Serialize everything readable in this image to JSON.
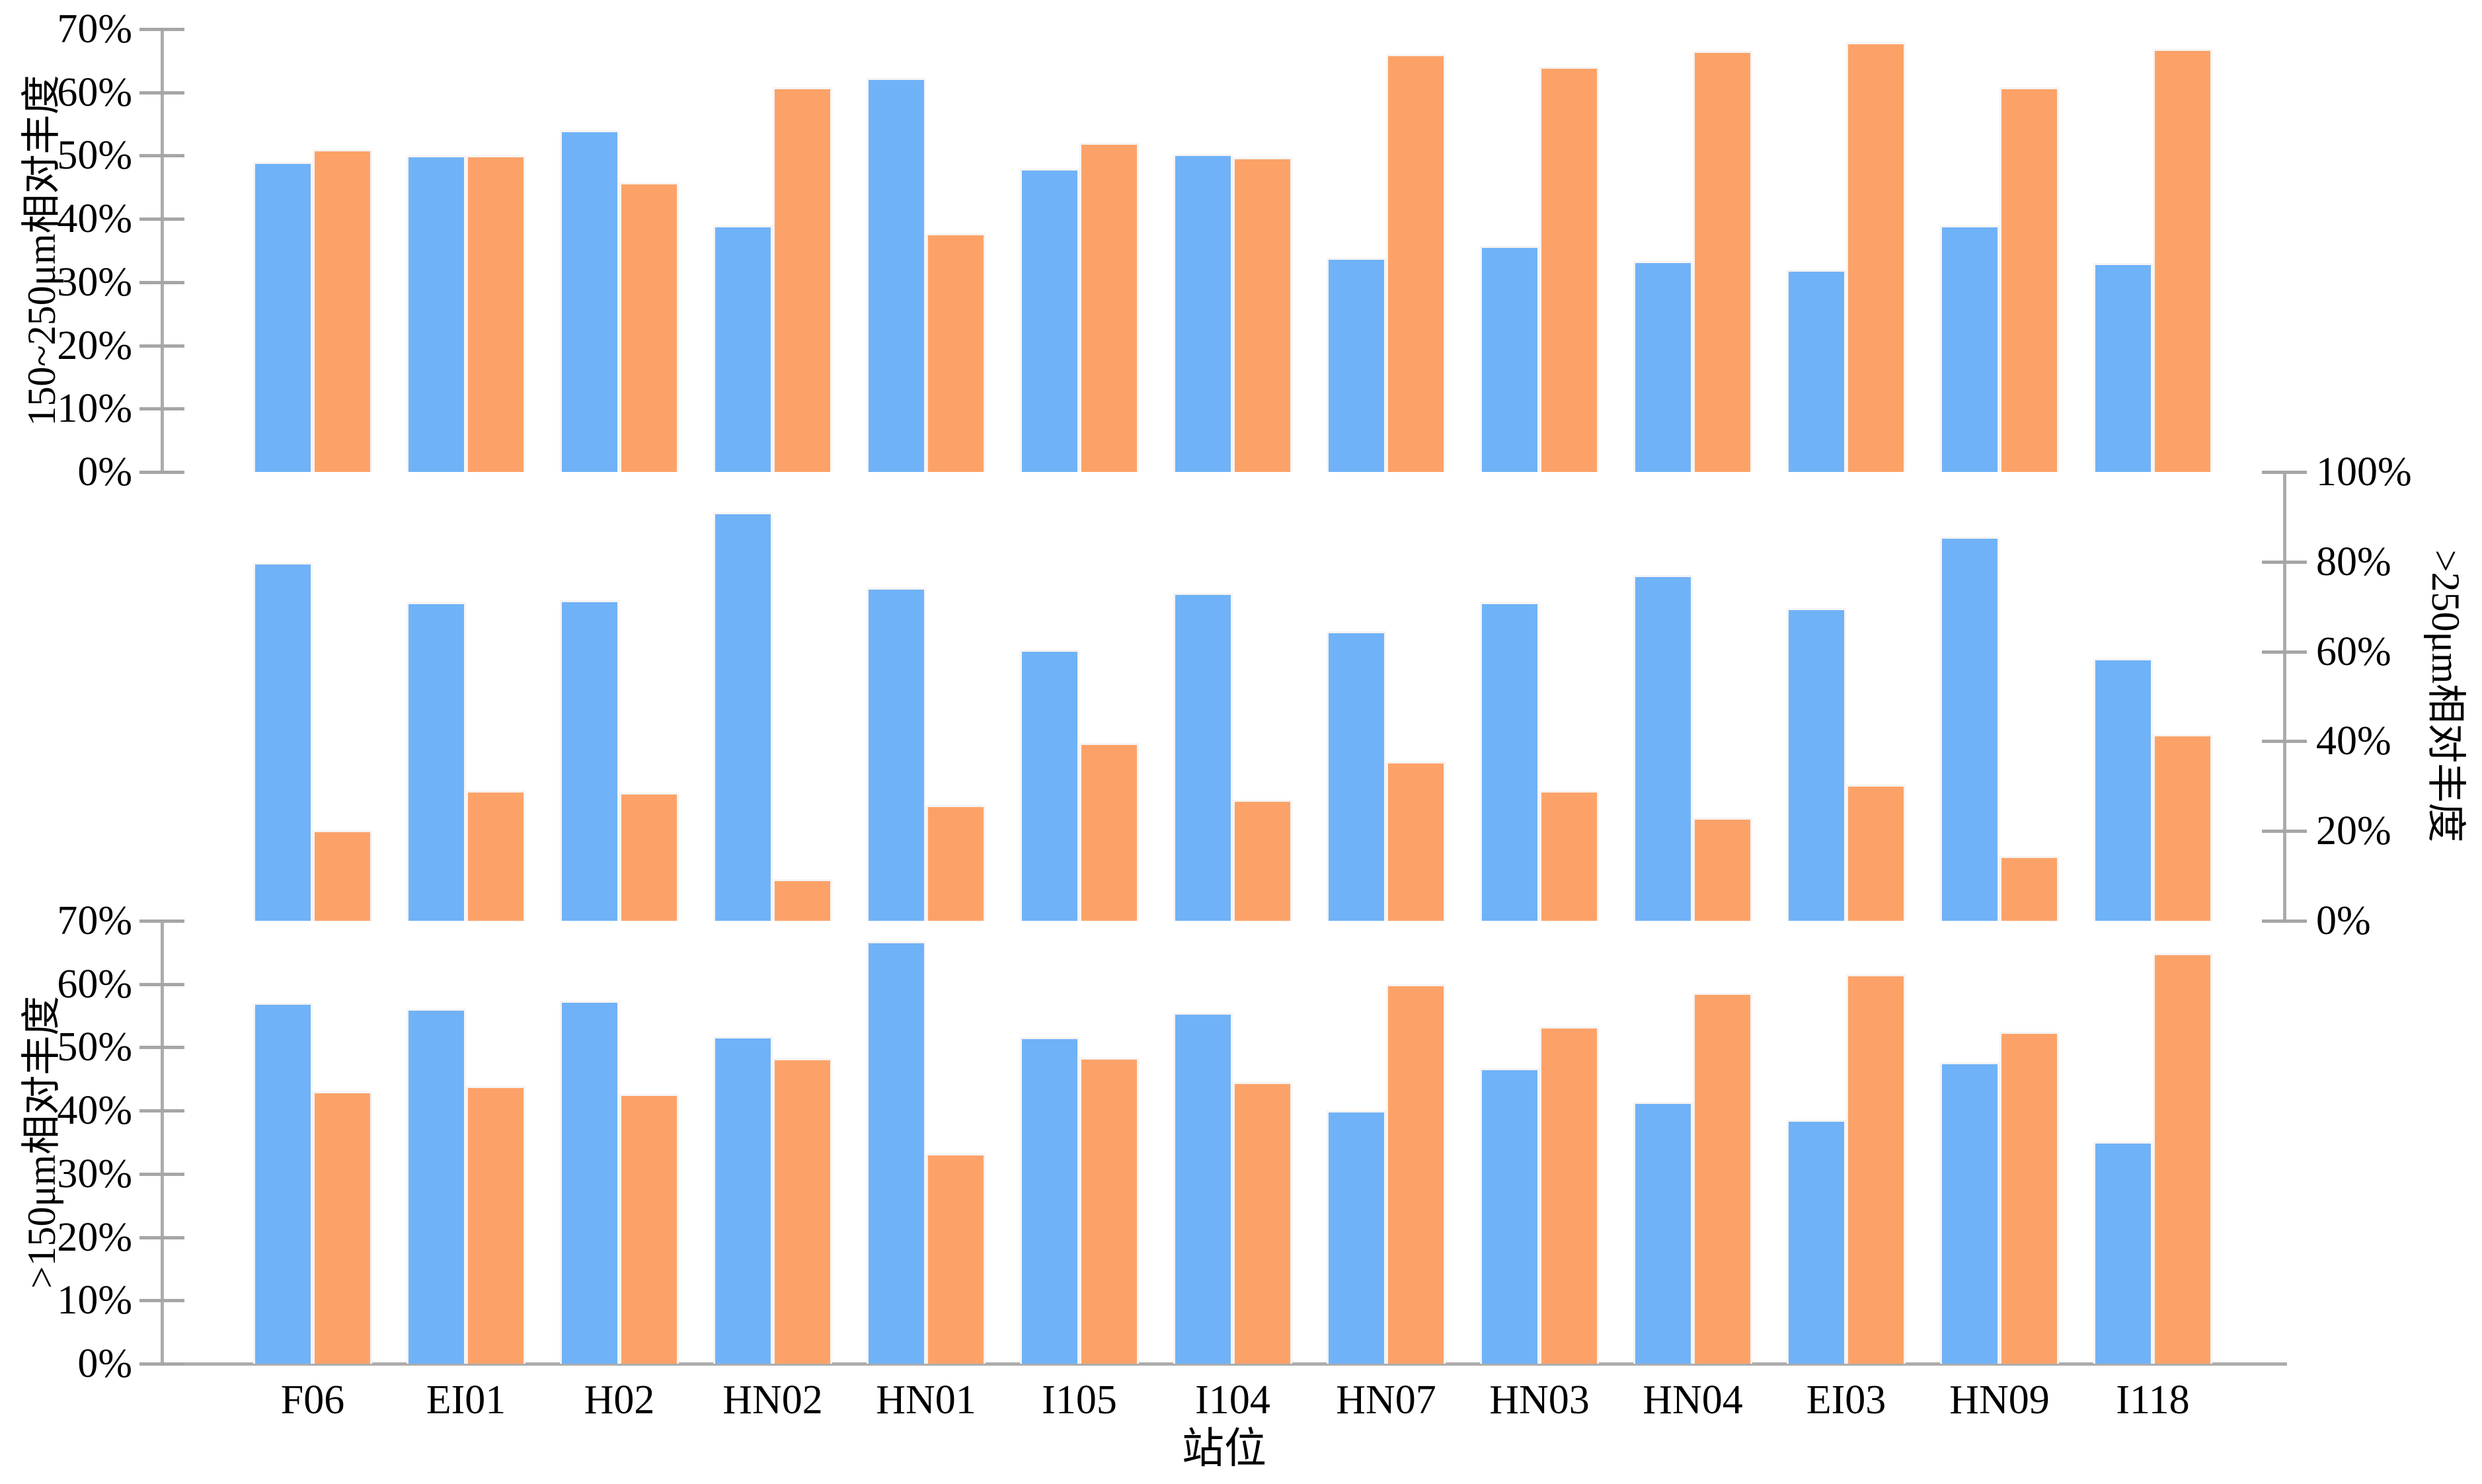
{
  "chart": {
    "xlabel": "站位",
    "categories": [
      "F06",
      "EI01",
      "H02",
      "HN02",
      "HN01",
      "I105",
      "I104",
      "HN07",
      "HN03",
      "HN04",
      "EI03",
      "HN09",
      "I118"
    ],
    "colors": {
      "blue_series": "#70B2F7",
      "orange_series": "#FCA268",
      "axis_line": "#ACACAC",
      "tick_mark": "#A6A6A6",
      "text": "#000000",
      "background": "#FFFFFF"
    },
    "panels": {
      "top": {
        "ylabel": "150~250μm相对丰度",
        "yticks": [
          "0%",
          "10%",
          "20%",
          "30%",
          "40%",
          "50%",
          "60%",
          "70%"
        ],
        "axis_side": "left"
      },
      "middle": {
        "ylabel": ">250μm相对丰度",
        "yticks": [
          "0%",
          "20%",
          "40%",
          "60%",
          "80%",
          "100%"
        ],
        "axis_side": "right"
      },
      "bottom": {
        "ylabel": ">150μm相对丰度",
        "yticks": [
          "0%",
          "10%",
          "20%",
          "30%",
          "40%",
          "50%",
          "60%",
          "70%"
        ],
        "axis_side": "left"
      }
    }
  },
  "chart_data": [
    {
      "type": "bar",
      "panel": "top",
      "title": "150~250μm相对丰度",
      "xlabel": "站位",
      "ylabel": "150~250μm相对丰度",
      "ylim": [
        0,
        70
      ],
      "grid": false,
      "legend": "none",
      "categories": [
        "F06",
        "EI01",
        "H02",
        "HN02",
        "HN01",
        "I105",
        "I104",
        "HN07",
        "HN03",
        "HN04",
        "EI03",
        "HN09",
        "I118"
      ],
      "series": [
        {
          "name": "blue",
          "color": "#70B2F7",
          "values": [
            49.0,
            50.0,
            54.0,
            39.0,
            62.3,
            48.0,
            50.3,
            33.8,
            35.7,
            33.3,
            32.0,
            39.0,
            33.0
          ]
        },
        {
          "name": "orange",
          "color": "#FCA268",
          "values": [
            51.0,
            50.0,
            45.8,
            60.8,
            37.7,
            52.0,
            49.7,
            66.0,
            64.0,
            66.5,
            67.9,
            60.8,
            66.9
          ]
        }
      ]
    },
    {
      "type": "bar",
      "panel": "middle",
      "title": ">250μm相对丰度",
      "xlabel": "站位",
      "ylabel": ">250μm相对丰度",
      "ylim": [
        0,
        100
      ],
      "grid": false,
      "legend": "none",
      "categories": [
        "F06",
        "EI01",
        "H02",
        "HN02",
        "HN01",
        "I105",
        "I104",
        "HN07",
        "HN03",
        "HN04",
        "EI03",
        "HN09",
        "I118"
      ],
      "series": [
        {
          "name": "blue",
          "color": "#70B2F7",
          "values": [
            79.8,
            71.0,
            71.5,
            91.0,
            74.2,
            60.4,
            73.0,
            64.5,
            71.0,
            77.0,
            69.7,
            85.6,
            58.5
          ]
        },
        {
          "name": "orange",
          "color": "#FCA268",
          "values": [
            20.2,
            29.0,
            28.5,
            9.3,
            25.8,
            39.6,
            27.0,
            35.5,
            29.0,
            23.0,
            30.3,
            14.4,
            41.5
          ]
        }
      ]
    },
    {
      "type": "bar",
      "panel": "bottom",
      "title": ">150μm相对丰度",
      "xlabel": "站位",
      "ylabel": ">150μm相对丰度",
      "ylim": [
        0,
        70
      ],
      "grid": false,
      "legend": "none",
      "categories": [
        "F06",
        "EI01",
        "H02",
        "HN02",
        "HN01",
        "I105",
        "I104",
        "HN07",
        "HN03",
        "HN04",
        "EI03",
        "HN09",
        "I118"
      ],
      "series": [
        {
          "name": "blue",
          "color": "#70B2F7",
          "values": [
            57.0,
            56.1,
            57.4,
            51.7,
            66.8,
            51.6,
            55.5,
            40.0,
            46.7,
            41.4,
            38.5,
            47.6,
            35.1
          ]
        },
        {
          "name": "orange",
          "color": "#FCA268",
          "values": [
            43.0,
            43.9,
            42.6,
            48.3,
            33.2,
            48.4,
            44.5,
            60.0,
            53.3,
            58.6,
            61.5,
            52.4,
            64.9
          ]
        }
      ]
    }
  ]
}
